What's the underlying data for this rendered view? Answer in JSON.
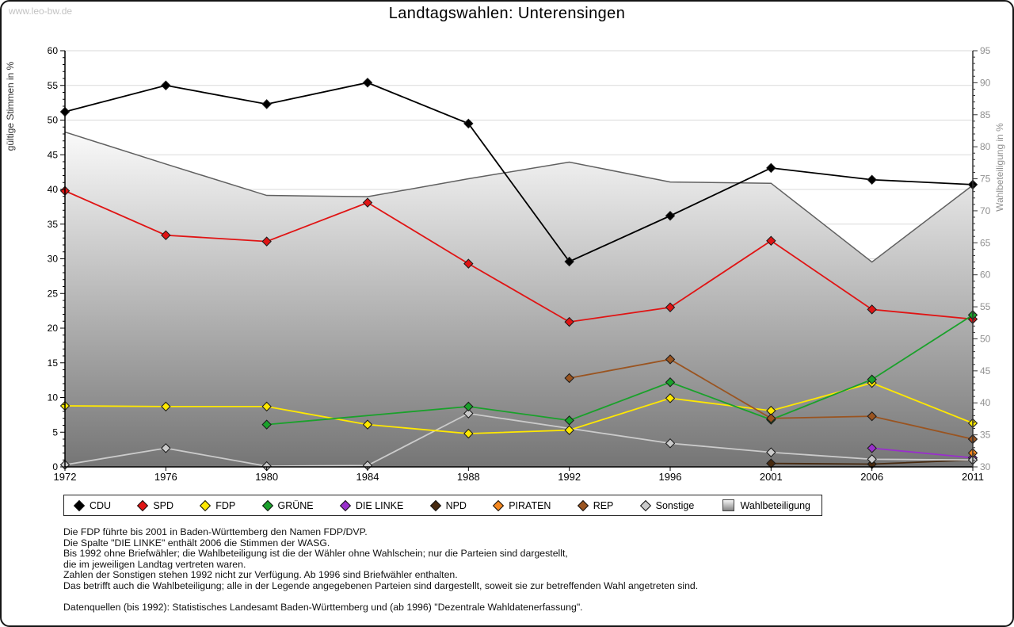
{
  "window": {
    "watermark": "www.leo-bw.de",
    "title": "Landtagswahlen: Unterensingen"
  },
  "chart_data": {
    "type": "line",
    "title": "Landtagswahlen: Unterensingen",
    "categories": [
      1972,
      1976,
      1980,
      1984,
      1988,
      1992,
      1996,
      2001,
      2006,
      2011
    ],
    "left_axis": {
      "label": "gültige Stimmen in %",
      "min": 0,
      "max": 60,
      "major_step": 5,
      "minor_step": 1
    },
    "right_axis": {
      "label": "Wahlbeteiligung in %",
      "min": 30,
      "max": 95,
      "major_step": 5,
      "minor_step": 1
    },
    "grid": "horizontal-left-major",
    "legend_position": "bottom-box",
    "turnout_area": {
      "name": "Wahlbeteiligung",
      "axis": "right",
      "values": [
        82.3,
        77.3,
        72.4,
        72.2,
        75.0,
        77.6,
        74.5,
        74.3,
        62.0,
        74.0
      ],
      "outline_color": "#606060",
      "gradient_top": "#fafafa",
      "gradient_bottom": "#757575"
    },
    "series": [
      {
        "name": "CDU",
        "color": "#000000",
        "values": [
          51.2,
          55.0,
          52.3,
          55.4,
          49.5,
          29.6,
          36.2,
          43.1,
          41.4,
          40.7
        ]
      },
      {
        "name": "SPD",
        "color": "#e01414",
        "values": [
          39.8,
          33.4,
          32.5,
          38.1,
          29.3,
          20.9,
          23.0,
          32.6,
          22.7,
          21.3
        ]
      },
      {
        "name": "FDP",
        "color": "#ffe800",
        "values": [
          8.8,
          8.7,
          8.7,
          6.1,
          4.8,
          5.3,
          9.9,
          8.1,
          12.1,
          6.3
        ]
      },
      {
        "name": "GRÜNE",
        "color": "#1aa12b",
        "values": [
          null,
          null,
          6.1,
          null,
          8.7,
          6.7,
          12.2,
          6.8,
          12.6,
          21.9
        ]
      },
      {
        "name": "DIE LINKE",
        "color": "#9930cb",
        "values": [
          null,
          null,
          null,
          null,
          null,
          null,
          null,
          null,
          2.7,
          1.3
        ]
      },
      {
        "name": "NPD",
        "color": "#472a10",
        "values": [
          null,
          null,
          null,
          null,
          null,
          null,
          null,
          0.5,
          0.4,
          1.0
        ]
      },
      {
        "name": "PIRATEN",
        "color": "#f5871e",
        "values": [
          null,
          null,
          null,
          null,
          null,
          null,
          null,
          null,
          null,
          2.0
        ]
      },
      {
        "name": "REP",
        "color": "#9a5420",
        "values": [
          null,
          null,
          null,
          null,
          null,
          12.8,
          15.5,
          7.0,
          7.3,
          4.0
        ]
      },
      {
        "name": "Sonstige",
        "color": "#cbcbcb",
        "values": [
          0.3,
          2.7,
          0.1,
          0.2,
          7.7,
          null,
          3.4,
          2.1,
          1.1,
          1.0
        ]
      }
    ]
  },
  "legend": {
    "turnout_label": "Wahlbeteiligung"
  },
  "footnotes": {
    "lines": [
      "Die FDP führte bis 2001 in Baden-Württemberg den Namen FDP/DVP.",
      "Die Spalte \"DIE LINKE\" enthält 2006 die Stimmen der WASG.",
      "Bis 1992 ohne Briefwähler; die Wahlbeteiligung ist die der Wähler ohne Wahlschein; nur die Parteien sind dargestellt,",
      "die im jeweiligen Landtag vertreten waren.",
      "Zahlen der Sonstigen stehen 1992 nicht zur Verfügung. Ab 1996 sind Briefwähler enthalten.",
      "Das betrifft auch die Wahlbeteiligung; alle in der Legende angegebenen Parteien sind dargestellt, soweit sie zur betreffenden Wahl angetreten sind."
    ],
    "source": "Datenquellen (bis 1992): Statistisches Landesamt Baden-Württemberg und (ab 1996) \"Dezentrale Wahldatenerfassung\"."
  }
}
